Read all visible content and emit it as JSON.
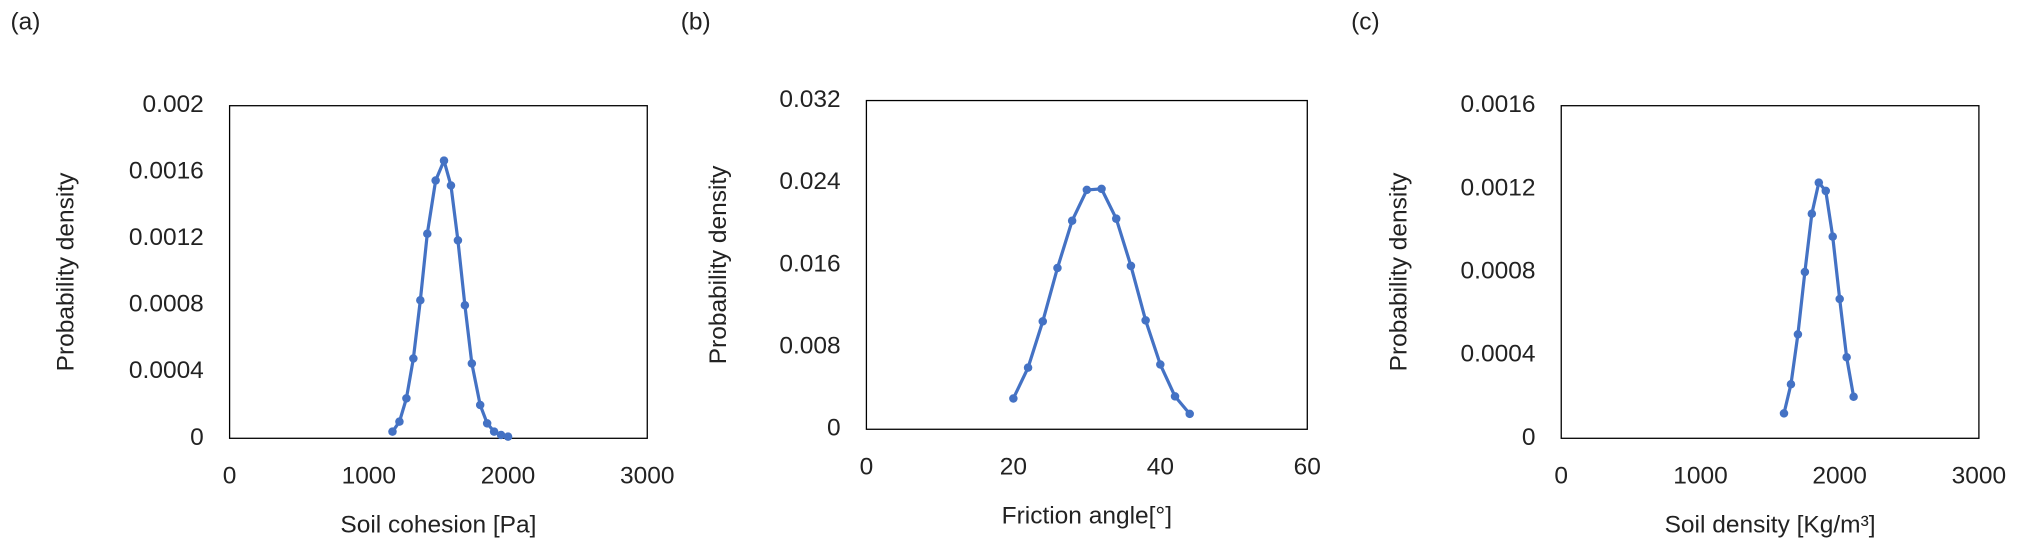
{
  "chart_data": [
    {
      "type": "line",
      "panel": "(a)",
      "x_label": "Soil cohesion [Pa]",
      "y_label": "Probability density",
      "x": [
        1170,
        1220,
        1270,
        1320,
        1370,
        1420,
        1480,
        1540,
        1590,
        1640,
        1690,
        1740,
        1800,
        1850,
        1900,
        1950,
        2000
      ],
      "values": [
        4e-05,
        0.0001,
        0.00024,
        0.00048,
        0.00083,
        0.00123,
        0.00155,
        0.00167,
        0.00152,
        0.00119,
        0.0008,
        0.00045,
        0.0002,
        9e-05,
        4e-05,
        2e-05,
        1e-05
      ],
      "color": "#4472c4",
      "xlim": [
        0,
        3000
      ],
      "xticks": [
        0,
        1000,
        2000,
        3000
      ],
      "ylim": [
        0,
        0.002
      ],
      "yticks": [
        0,
        0.0004,
        0.0008,
        0.0012,
        0.0016,
        0.002
      ]
    },
    {
      "type": "line",
      "panel": "(b)",
      "x_label": "Friction angle[°]",
      "y_label": "Probability density",
      "x": [
        20,
        22,
        24,
        26,
        28,
        30,
        32,
        34,
        36,
        38,
        40,
        42,
        44
      ],
      "values": [
        0.003,
        0.006,
        0.0105,
        0.0157,
        0.0203,
        0.0233,
        0.0234,
        0.0205,
        0.0159,
        0.0106,
        0.0063,
        0.0032,
        0.0015
      ],
      "color": "#4472c4",
      "xlim": [
        0,
        60
      ],
      "xticks": [
        0,
        20,
        40,
        60
      ],
      "ylim": [
        0,
        0.032
      ],
      "yticks": [
        0,
        0.008,
        0.016,
        0.024,
        0.032
      ]
    },
    {
      "type": "line",
      "panel": "(c)",
      "x_label": "Soil density [Kg/m³]",
      "y_label": "Probability density",
      "x": [
        1600,
        1650,
        1700,
        1750,
        1800,
        1850,
        1900,
        1950,
        2000,
        2050,
        2100
      ],
      "values": [
        0.00012,
        0.00026,
        0.0005,
        0.0008,
        0.00108,
        0.00123,
        0.00119,
        0.00097,
        0.00067,
        0.00039,
        0.0002
      ],
      "color": "#4472c4",
      "xlim": [
        0,
        3000
      ],
      "xticks": [
        0,
        1000,
        2000,
        3000
      ],
      "ylim": [
        0,
        0.0016
      ],
      "yticks": [
        0,
        0.0004,
        0.0008,
        0.0012,
        0.0016
      ]
    }
  ]
}
